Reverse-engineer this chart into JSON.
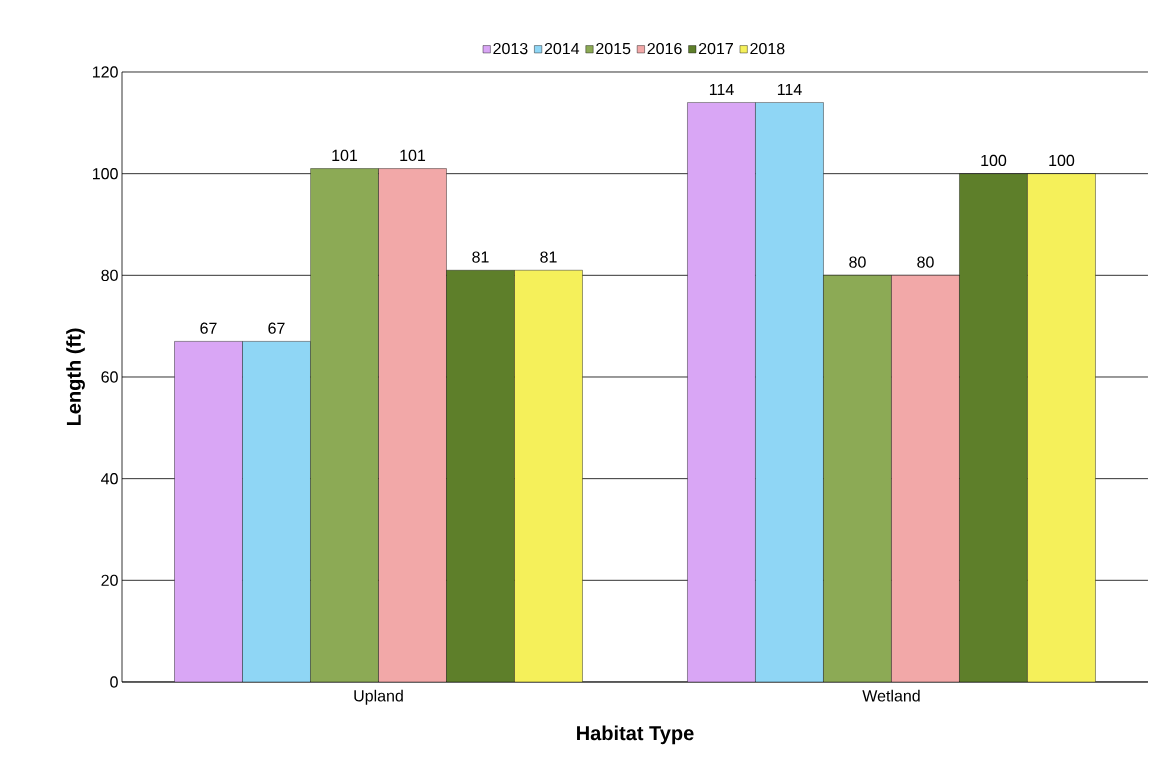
{
  "chart_data": {
    "type": "bar",
    "xlabel": "Habitat Type",
    "ylabel": "Length (ft)",
    "categories": [
      "Upland",
      "Wetland"
    ],
    "series": [
      {
        "name": "2013",
        "color": "#d9a6f5",
        "values": [
          67,
          114
        ]
      },
      {
        "name": "2014",
        "color": "#8fd6f5",
        "values": [
          67,
          114
        ]
      },
      {
        "name": "2015",
        "color": "#8caa55",
        "values": [
          101,
          80
        ]
      },
      {
        "name": "2016",
        "color": "#f2a8a8",
        "values": [
          101,
          80
        ]
      },
      {
        "name": "2017",
        "color": "#5e7f2a",
        "values": [
          81,
          100
        ]
      },
      {
        "name": "2018",
        "color": "#f5f05a",
        "values": [
          81,
          100
        ]
      }
    ],
    "ylim": [
      0,
      120
    ],
    "yticks": [
      0,
      20,
      40,
      60,
      80,
      100,
      120
    ],
    "grid": "y",
    "legend": "top",
    "data_labels": true
  }
}
